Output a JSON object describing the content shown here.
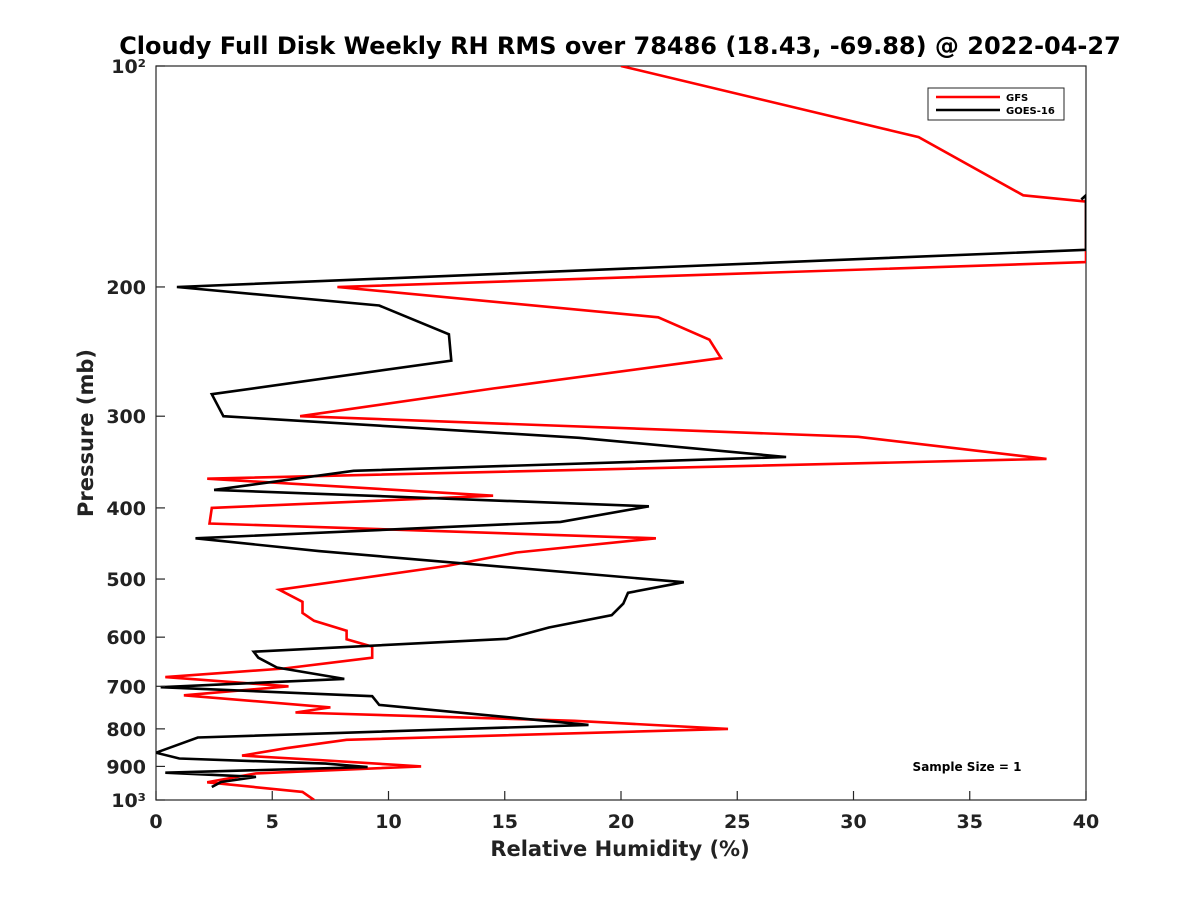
{
  "chart_data": {
    "type": "line",
    "title": "Cloudy Full Disk Weekly RH RMS over 78486 (18.43, -69.88) @ 2022-04-27",
    "xlabel": "Relative Humidity (%)",
    "ylabel": "Pressure (mb)",
    "xlim": [
      0,
      40
    ],
    "ylim": [
      1000,
      100
    ],
    "y_scale": "log",
    "y_reversed": true,
    "grid": false,
    "legend_position": "top-right",
    "x_ticks": [
      0,
      5,
      10,
      15,
      20,
      25,
      30,
      35,
      40
    ],
    "x_tick_labels": [
      "0",
      "5",
      "10",
      "15",
      "20",
      "25",
      "30",
      "35",
      "40"
    ],
    "y_ticks": [
      100,
      200,
      300,
      400,
      500,
      600,
      700,
      800,
      900,
      1000
    ],
    "y_tick_labels": [
      "10²",
      "200",
      "300",
      "400",
      "500",
      "600",
      "700",
      "800",
      "900",
      "10³"
    ],
    "annotation": "Sample Size = 1",
    "series": [
      {
        "name": "GFS",
        "color": "#ff0000",
        "points": [
          [
            20.0,
            100
          ],
          [
            32.8,
            125
          ],
          [
            37.3,
            150
          ],
          [
            40.0,
            153
          ],
          [
            40.0,
            185
          ],
          [
            7.8,
            200
          ],
          [
            21.6,
            220
          ],
          [
            23.8,
            236
          ],
          [
            24.3,
            250
          ],
          [
            14.5,
            275
          ],
          [
            6.2,
            300
          ],
          [
            30.2,
            320
          ],
          [
            38.3,
            343
          ],
          [
            2.2,
            365
          ],
          [
            14.5,
            385
          ],
          [
            2.4,
            400
          ],
          [
            2.3,
            420
          ],
          [
            21.5,
            440
          ],
          [
            15.5,
            460
          ],
          [
            12.5,
            480
          ],
          [
            5.3,
            517
          ],
          [
            6.3,
            537
          ],
          [
            6.3,
            556
          ],
          [
            6.8,
            570
          ],
          [
            8.2,
            588
          ],
          [
            8.2,
            604
          ],
          [
            9.3,
            618
          ],
          [
            9.3,
            640
          ],
          [
            5.5,
            662
          ],
          [
            0.4,
            680
          ],
          [
            5.7,
            700
          ],
          [
            1.2,
            720
          ],
          [
            7.5,
            748
          ],
          [
            6.0,
            760
          ],
          [
            18.0,
            780
          ],
          [
            24.6,
            800
          ],
          [
            8.2,
            828
          ],
          [
            5.6,
            850
          ],
          [
            3.7,
            870
          ],
          [
            7.0,
            882
          ],
          [
            11.4,
            900
          ],
          [
            4.3,
            920
          ],
          [
            2.2,
            946
          ],
          [
            6.3,
            975
          ],
          [
            6.8,
            1000
          ]
        ]
      },
      {
        "name": "GOES-16",
        "color": "#000000",
        "points": [
          [
            39.8,
            152
          ],
          [
            40.0,
            150
          ],
          [
            40.0,
            178
          ],
          [
            0.9,
            200
          ],
          [
            9.6,
            212
          ],
          [
            12.6,
            232
          ],
          [
            12.7,
            252
          ],
          [
            2.4,
            280
          ],
          [
            2.9,
            300
          ],
          [
            18.2,
            321
          ],
          [
            27.1,
            341
          ],
          [
            8.5,
            356
          ],
          [
            2.5,
            378
          ],
          [
            21.2,
            398
          ],
          [
            17.4,
            418
          ],
          [
            1.7,
            440
          ],
          [
            7.0,
            458
          ],
          [
            22.7,
            505
          ],
          [
            20.3,
            522
          ],
          [
            20.1,
            540
          ],
          [
            19.6,
            560
          ],
          [
            16.9,
            582
          ],
          [
            15.1,
            603
          ],
          [
            4.2,
            628
          ],
          [
            4.4,
            640
          ],
          [
            5.2,
            660
          ],
          [
            8.1,
            684
          ],
          [
            0.2,
            702
          ],
          [
            9.3,
            722
          ],
          [
            9.6,
            742
          ],
          [
            18.6,
            790
          ],
          [
            1.8,
            822
          ],
          [
            0.0,
            862
          ],
          [
            1.0,
            878
          ],
          [
            7.3,
            892
          ],
          [
            9.1,
            902
          ],
          [
            0.4,
            918
          ],
          [
            4.3,
            930
          ],
          [
            2.8,
            945
          ],
          [
            2.4,
            960
          ]
        ]
      }
    ]
  }
}
